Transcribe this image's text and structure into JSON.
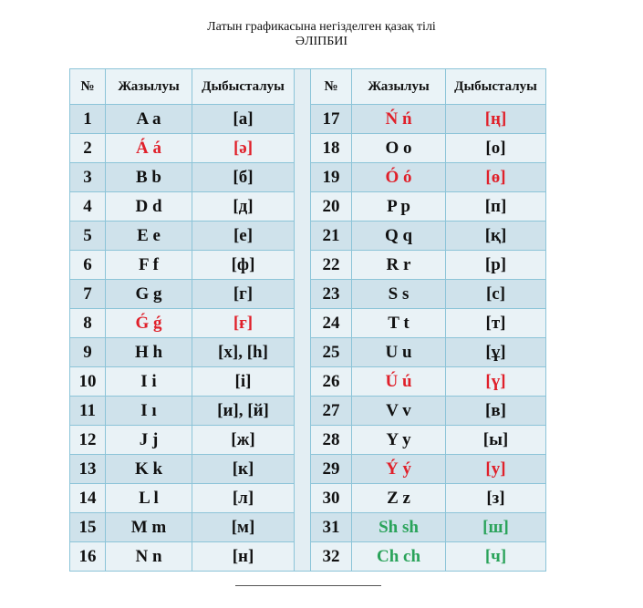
{
  "title": {
    "line1": "Латын графикасына негізделген қазақ тілі",
    "line2": "ӘЛІПБИІ"
  },
  "headers": {
    "num": "№",
    "written": "Жазылуы",
    "sound": "Дыбысталуы"
  },
  "colors": {
    "red": "#e0202a",
    "green": "#2aa35a",
    "row_dark": "#cfe2eb",
    "row_light": "#e9f2f6"
  },
  "left": [
    {
      "n": "1",
      "w": "A a",
      "s": "[а]",
      "c": ""
    },
    {
      "n": "2",
      "w": "Á á",
      "s": "[ә]",
      "c": "red"
    },
    {
      "n": "3",
      "w": "B b",
      "s": "[б]",
      "c": ""
    },
    {
      "n": "4",
      "w": "D d",
      "s": "[д]",
      "c": ""
    },
    {
      "n": "5",
      "w": "E e",
      "s": "[е]",
      "c": ""
    },
    {
      "n": "6",
      "w": "F f",
      "s": "[ф]",
      "c": ""
    },
    {
      "n": "7",
      "w": "G g",
      "s": "[г]",
      "c": ""
    },
    {
      "n": "8",
      "w": "Ǵ ǵ",
      "s": "[ғ]",
      "c": "red"
    },
    {
      "n": "9",
      "w": "H h",
      "s": "[х],  [h]",
      "c": ""
    },
    {
      "n": "10",
      "w": "I i",
      "s": "[і]",
      "c": ""
    },
    {
      "n": "11",
      "w": "I ı",
      "s": "[и], [й]",
      "c": ""
    },
    {
      "n": "12",
      "w": "J j",
      "s": "[ж]",
      "c": ""
    },
    {
      "n": "13",
      "w": "K k",
      "s": "[к]",
      "c": ""
    },
    {
      "n": "14",
      "w": "L l",
      "s": "[л]",
      "c": ""
    },
    {
      "n": "15",
      "w": "M m",
      "s": "[м]",
      "c": ""
    },
    {
      "n": "16",
      "w": "N n",
      "s": "[н]",
      "c": ""
    }
  ],
  "right": [
    {
      "n": "17",
      "w": "Ń ń",
      "s": "[ң]",
      "c": "red"
    },
    {
      "n": "18",
      "w": "O o",
      "s": "[о]",
      "c": ""
    },
    {
      "n": "19",
      "w": "Ó ó",
      "s": "[ө]",
      "c": "red"
    },
    {
      "n": "20",
      "w": "P p",
      "s": "[п]",
      "c": ""
    },
    {
      "n": "21",
      "w": "Q q",
      "s": "[қ]",
      "c": ""
    },
    {
      "n": "22",
      "w": "R r",
      "s": "[р]",
      "c": ""
    },
    {
      "n": "23",
      "w": "S s",
      "s": "[с]",
      "c": ""
    },
    {
      "n": "24",
      "w": "T t",
      "s": "[т]",
      "c": ""
    },
    {
      "n": "25",
      "w": "U u",
      "s": "[ұ]",
      "c": ""
    },
    {
      "n": "26",
      "w": "Ú ú",
      "s": "[ү]",
      "c": "red"
    },
    {
      "n": "27",
      "w": "V v",
      "s": "[в]",
      "c": ""
    },
    {
      "n": "28",
      "w": "Y y",
      "s": "[ы]",
      "c": ""
    },
    {
      "n": "29",
      "w": "Ý ý",
      "s": "[у]",
      "c": "red"
    },
    {
      "n": "30",
      "w": "Z z",
      "s": "[з]",
      "c": ""
    },
    {
      "n": "31",
      "w": "Sh sh",
      "s": "[ш]",
      "c": "green"
    },
    {
      "n": "32",
      "w": "Ch ch",
      "s": "[ч]",
      "c": "green"
    }
  ]
}
